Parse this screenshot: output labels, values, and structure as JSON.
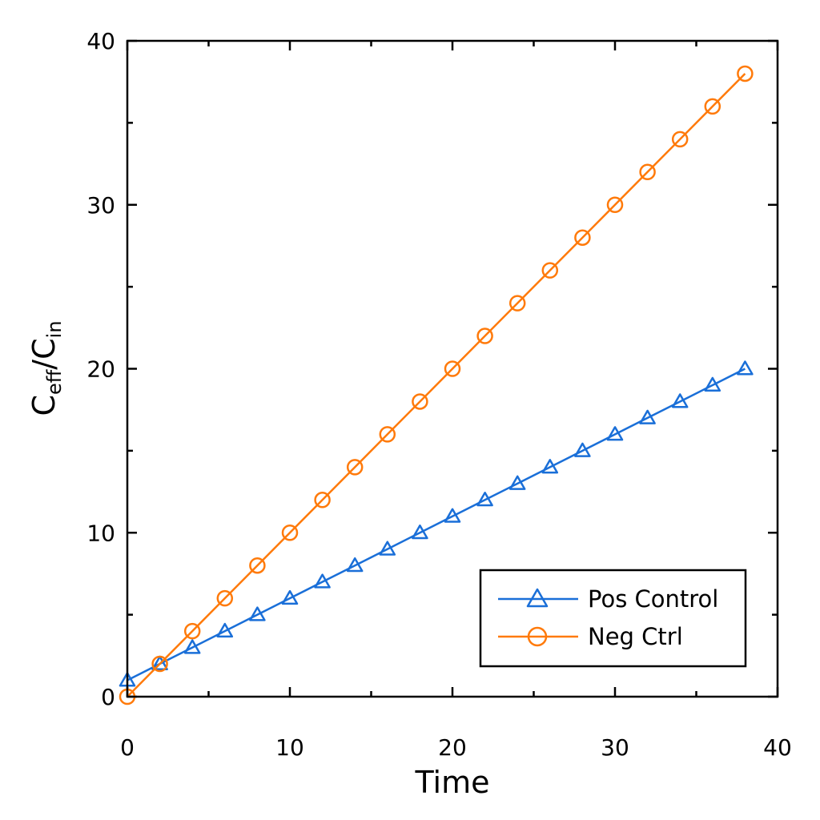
{
  "chart_data": {
    "type": "line",
    "xlabel": "Time",
    "ylabel": {
      "main": "C",
      "sub1": "eff",
      "slash": "/C",
      "sub2": "in"
    },
    "xlim": [
      0,
      40
    ],
    "ylim": [
      0,
      40
    ],
    "xticks": [
      "0",
      "10",
      "20",
      "30",
      "40"
    ],
    "yticks": [
      "0",
      "10",
      "20",
      "30",
      "40"
    ],
    "grid": false,
    "legend_placement": "bottom-right",
    "series": [
      {
        "name": "Pos Control",
        "color": "#1a6fd8",
        "marker": "triangle",
        "x": [
          0,
          2,
          4,
          6,
          8,
          10,
          12,
          14,
          16,
          18,
          20,
          22,
          24,
          26,
          28,
          30,
          32,
          34,
          36,
          38
        ],
        "y": [
          1,
          2,
          3,
          4,
          5,
          6,
          7,
          8,
          9,
          10,
          11,
          12,
          13,
          14,
          15,
          16,
          17,
          18,
          19,
          20
        ]
      },
      {
        "name": "Neg Ctrl",
        "color": "#ff7a0a",
        "marker": "circle",
        "x": [
          0,
          2,
          4,
          6,
          8,
          10,
          12,
          14,
          16,
          18,
          20,
          22,
          24,
          26,
          28,
          30,
          32,
          34,
          36,
          38
        ],
        "y": [
          0,
          2,
          4,
          6,
          8,
          10,
          12,
          14,
          16,
          18,
          20,
          22,
          24,
          26,
          28,
          30,
          32,
          34,
          36,
          38
        ]
      }
    ]
  }
}
